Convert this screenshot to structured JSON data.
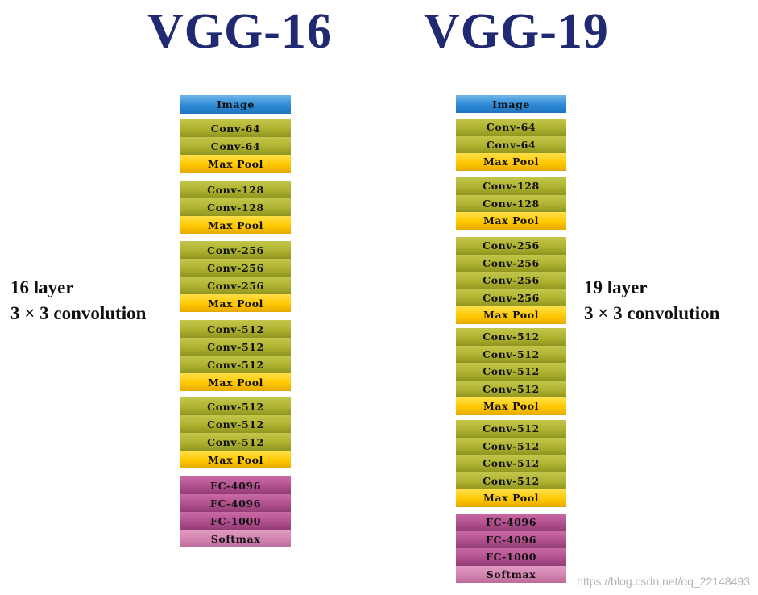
{
  "vgg16": {
    "title": "VGG-16",
    "side_label": [
      "16 layer",
      "3 × 3 convolution"
    ],
    "blocks": [
      [
        {
          "label": "Image",
          "type": "image"
        }
      ],
      [
        {
          "label": "Conv-64",
          "type": "conv"
        },
        {
          "label": "Conv-64",
          "type": "conv"
        },
        {
          "label": "Max Pool",
          "type": "pool"
        }
      ],
      [
        {
          "label": "Conv-128",
          "type": "conv"
        },
        {
          "label": "Conv-128",
          "type": "conv"
        },
        {
          "label": "Max Pool",
          "type": "pool"
        }
      ],
      [
        {
          "label": "Conv-256",
          "type": "conv"
        },
        {
          "label": "Conv-256",
          "type": "conv"
        },
        {
          "label": "Conv-256",
          "type": "conv"
        },
        {
          "label": "Max Pool",
          "type": "pool"
        }
      ],
      [
        {
          "label": "Conv-512",
          "type": "conv"
        },
        {
          "label": "Conv-512",
          "type": "conv"
        },
        {
          "label": "Conv-512",
          "type": "conv"
        },
        {
          "label": "Max Pool",
          "type": "pool"
        }
      ],
      [
        {
          "label": "Conv-512",
          "type": "conv"
        },
        {
          "label": "Conv-512",
          "type": "conv"
        },
        {
          "label": "Conv-512",
          "type": "conv"
        },
        {
          "label": "Max Pool",
          "type": "pool"
        }
      ],
      [
        {
          "label": "FC-4096",
          "type": "fc"
        },
        {
          "label": "FC-4096",
          "type": "fc"
        },
        {
          "label": "FC-1000",
          "type": "fc"
        },
        {
          "label": "Softmax",
          "type": "softmax"
        }
      ]
    ]
  },
  "vgg19": {
    "title": "VGG-19",
    "side_label": [
      "19 layer",
      "3 × 3 convolution"
    ],
    "blocks": [
      [
        {
          "label": "Image",
          "type": "image"
        }
      ],
      [
        {
          "label": "Conv-64",
          "type": "conv"
        },
        {
          "label": "Conv-64",
          "type": "conv"
        },
        {
          "label": "Max Pool",
          "type": "pool"
        }
      ],
      [
        {
          "label": "Conv-128",
          "type": "conv"
        },
        {
          "label": "Conv-128",
          "type": "conv"
        },
        {
          "label": "Max Pool",
          "type": "pool"
        }
      ],
      [
        {
          "label": "Conv-256",
          "type": "conv"
        },
        {
          "label": "Conv-256",
          "type": "conv"
        },
        {
          "label": "Conv-256",
          "type": "conv"
        },
        {
          "label": "Conv-256",
          "type": "conv"
        },
        {
          "label": "Max Pool",
          "type": "pool"
        }
      ],
      [
        {
          "label": "Conv-512",
          "type": "conv"
        },
        {
          "label": "Conv-512",
          "type": "conv"
        },
        {
          "label": "Conv-512",
          "type": "conv"
        },
        {
          "label": "Conv-512",
          "type": "conv"
        },
        {
          "label": "Max Pool",
          "type": "pool"
        }
      ],
      [
        {
          "label": "Conv-512",
          "type": "conv"
        },
        {
          "label": "Conv-512",
          "type": "conv"
        },
        {
          "label": "Conv-512",
          "type": "conv"
        },
        {
          "label": "Conv-512",
          "type": "conv"
        },
        {
          "label": "Max Pool",
          "type": "pool"
        }
      ],
      [
        {
          "label": "FC-4096",
          "type": "fc"
        },
        {
          "label": "FC-4096",
          "type": "fc"
        },
        {
          "label": "FC-1000",
          "type": "fc"
        },
        {
          "label": "Softmax",
          "type": "softmax"
        }
      ]
    ]
  },
  "watermark": "https://blog.csdn.net/qq_22148493",
  "colors": {
    "title": "#1f2a72",
    "image": "#2e8ad6",
    "conv": "#aeb22f",
    "pool": "#ffc800",
    "fc": "#b0508e",
    "softmax": "#d283b0"
  }
}
